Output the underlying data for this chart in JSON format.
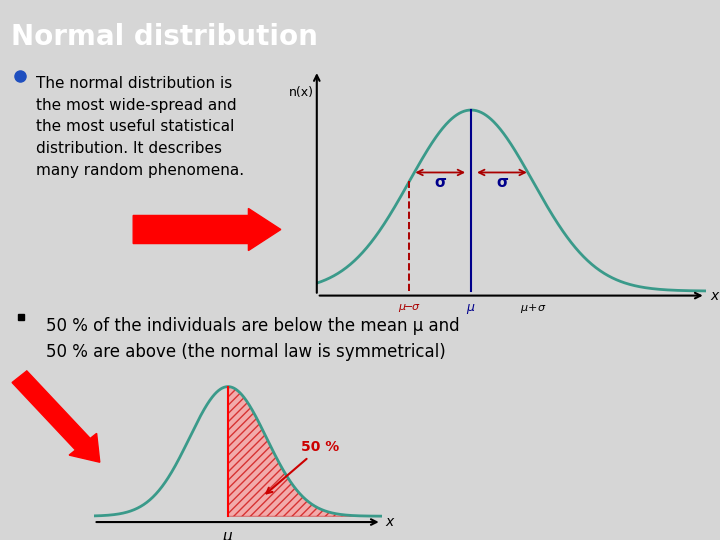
{
  "title": "Normal distribution",
  "title_bg": "#4472C4",
  "title_text_color": "#FFFFFF",
  "slide_bg": "#D6D6D6",
  "plot_bg": "#FFFFFF",
  "bullet1_text": "The normal distribution is\nthe most wide-spread and\nthe most useful statistical\ndistribution. It describes\nmany random phenomena.",
  "bullet2_text": "50 % of the individuals are below the mean μ and\n50 % are above (the normal law is symmetrical)",
  "fifty_pct_label": "50 %",
  "mu_label": "μ",
  "x_label": "x",
  "n_x_label": "n(x)",
  "sigma_label": "σ",
  "curve_color": "#3A9A8A",
  "vline_color_solid": "#00008B",
  "vline_color_dashed": "#AA0000",
  "arrow_color": "#AA0000",
  "fill_color": "#FF8888",
  "bullet1_color": "#1F4FBF",
  "bullet2_color": "#000000",
  "axis_color": "#000000",
  "text_color": "#000000",
  "sigma_text_color": "#00008B",
  "fifty_color": "#CC0000"
}
